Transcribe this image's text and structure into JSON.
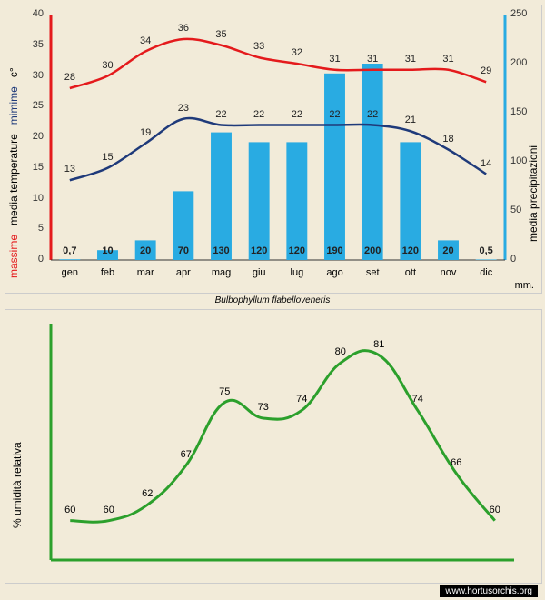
{
  "caption": "Bulbophyllum flabelloveneris",
  "watermark": "www.hortusorchis.org",
  "top_chart": {
    "months": [
      "gen",
      "feb",
      "mar",
      "apr",
      "mag",
      "giu",
      "lug",
      "ago",
      "set",
      "ott",
      "nov",
      "dic"
    ],
    "left_axis": {
      "label_max": "massime",
      "color_max": "#e41a1c",
      "label_temp": "media temperature",
      "color_temp": "#000",
      "label_min": "mimime",
      "color_min": "#1f3a7a",
      "unit": "c°",
      "unit_color": "#000",
      "min": 0,
      "max": 40,
      "step": 5
    },
    "right_axis": {
      "label": "media precipitazioni",
      "unit": "mm.",
      "min": 0,
      "max": 250,
      "step": 50
    },
    "max_temp": [
      28,
      30,
      34,
      36,
      35,
      33,
      32,
      31,
      31,
      31,
      31,
      29
    ],
    "min_temp": [
      13,
      15,
      19,
      23,
      22,
      22,
      22,
      22,
      22,
      21,
      18,
      14
    ],
    "precip": [
      0.7,
      10,
      20,
      70,
      130,
      120,
      120,
      190,
      200,
      120,
      20,
      0.5
    ],
    "max_color": "#e41a1c",
    "min_color": "#1f3a7a",
    "bar_color": "#29abe2",
    "axis_left_color": "#e41a1c",
    "axis_right_color": "#29abe2",
    "grid_color": "#bbb"
  },
  "bottom_chart": {
    "ylabel": "% umidità relativa",
    "ylabel_color": "#000",
    "line_color": "#2ca02c",
    "values": [
      60,
      60,
      62,
      67,
      75,
      73,
      74,
      80,
      81,
      74,
      66,
      60
    ],
    "ymin": 55,
    "ymax": 85,
    "axis_color": "#2ca02c"
  }
}
